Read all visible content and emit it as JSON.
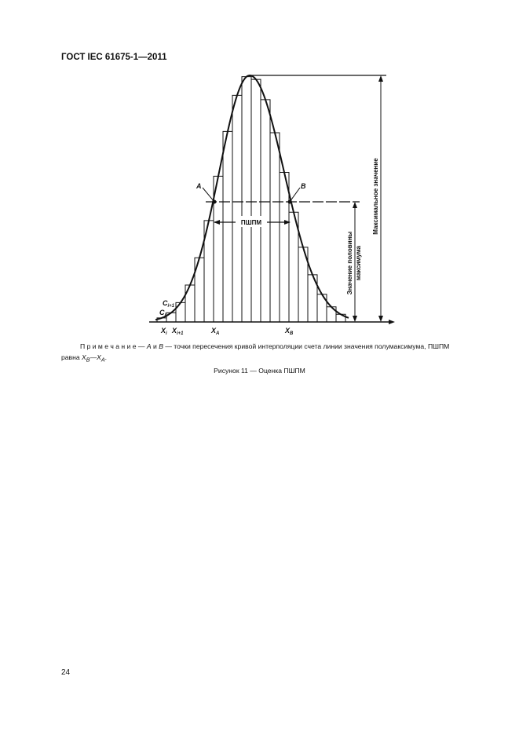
{
  "header": "ГОСТ IEC 61675-1—2011",
  "figure": {
    "labels": {
      "a": "A",
      "b": "B",
      "fwhm": "ПШПМ",
      "xi": "X",
      "xi_sub": "i",
      "xi1": "X",
      "xi1_sub": "i+1",
      "xa": "X",
      "xa_sub": "A",
      "xb": "X",
      "xb_sub": "B",
      "ci": "C",
      "ci_sub": "i",
      "ci1": "C",
      "ci1_sub": "i+1",
      "max_value": "Максимальное значение",
      "half_max_line1": "Значение половины",
      "half_max_line2": "максимума"
    }
  },
  "note": {
    "lead": "П р и м е ч а н и е — ",
    "a": "A",
    "and": " и ",
    "b": "B",
    "text": " — точки пересечения кривой интерполяции счета линии значения полумаксимума, ПШПМ равна ",
    "xb": "X",
    "xb_sub": "B",
    "dash": "—",
    "xa": "X",
    "xa_sub": "A",
    "end": "."
  },
  "caption": "Рисунок 11 — Оценка ПШПМ",
  "page_number": "24"
}
